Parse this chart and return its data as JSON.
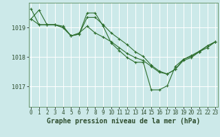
{
  "title": "Graphe pression niveau de la mer (hPa)",
  "background_color": "#cce9e9",
  "line_color": "#2d6e2d",
  "grid_color": "#b0d0d0",
  "x_ticks": [
    0,
    1,
    2,
    3,
    4,
    5,
    6,
    7,
    8,
    9,
    10,
    11,
    12,
    13,
    14,
    15,
    16,
    17,
    18,
    19,
    20,
    21,
    22,
    23
  ],
  "y_ticks": [
    1017,
    1018,
    1019
  ],
  "ylim": [
    1016.3,
    1019.85
  ],
  "xlim": [
    -0.3,
    23.3
  ],
  "series": [
    [
      1019.3,
      1019.6,
      1019.1,
      1019.1,
      1019.05,
      1018.72,
      1018.78,
      1019.35,
      1019.35,
      1019.1,
      1018.82,
      1018.62,
      1018.42,
      1018.18,
      1018.02,
      1017.72,
      1017.52,
      1017.42,
      1017.58,
      1017.92,
      1018.05,
      1018.2,
      1018.38,
      1018.52
    ],
    [
      1019.3,
      1019.1,
      1019.1,
      1019.1,
      1019.0,
      1018.72,
      1018.82,
      1019.05,
      1018.82,
      1018.68,
      1018.52,
      1018.32,
      1018.12,
      1017.98,
      1017.88,
      1017.68,
      1017.48,
      1017.42,
      1017.58,
      1017.88,
      1017.98,
      1018.18,
      1018.32,
      1018.52
    ],
    [
      1019.65,
      1019.1,
      1019.1,
      1019.1,
      1019.0,
      1018.72,
      1018.78,
      1019.5,
      1019.5,
      1019.05,
      1018.48,
      1018.22,
      1017.98,
      1017.82,
      1017.82,
      1016.88,
      1016.88,
      1017.02,
      1017.68,
      1017.92,
      1018.02,
      1018.18,
      1018.38,
      1018.52
    ]
  ],
  "x_label_fontsize": 5.5,
  "y_label_fontsize": 6.0,
  "title_fontsize": 7.0
}
